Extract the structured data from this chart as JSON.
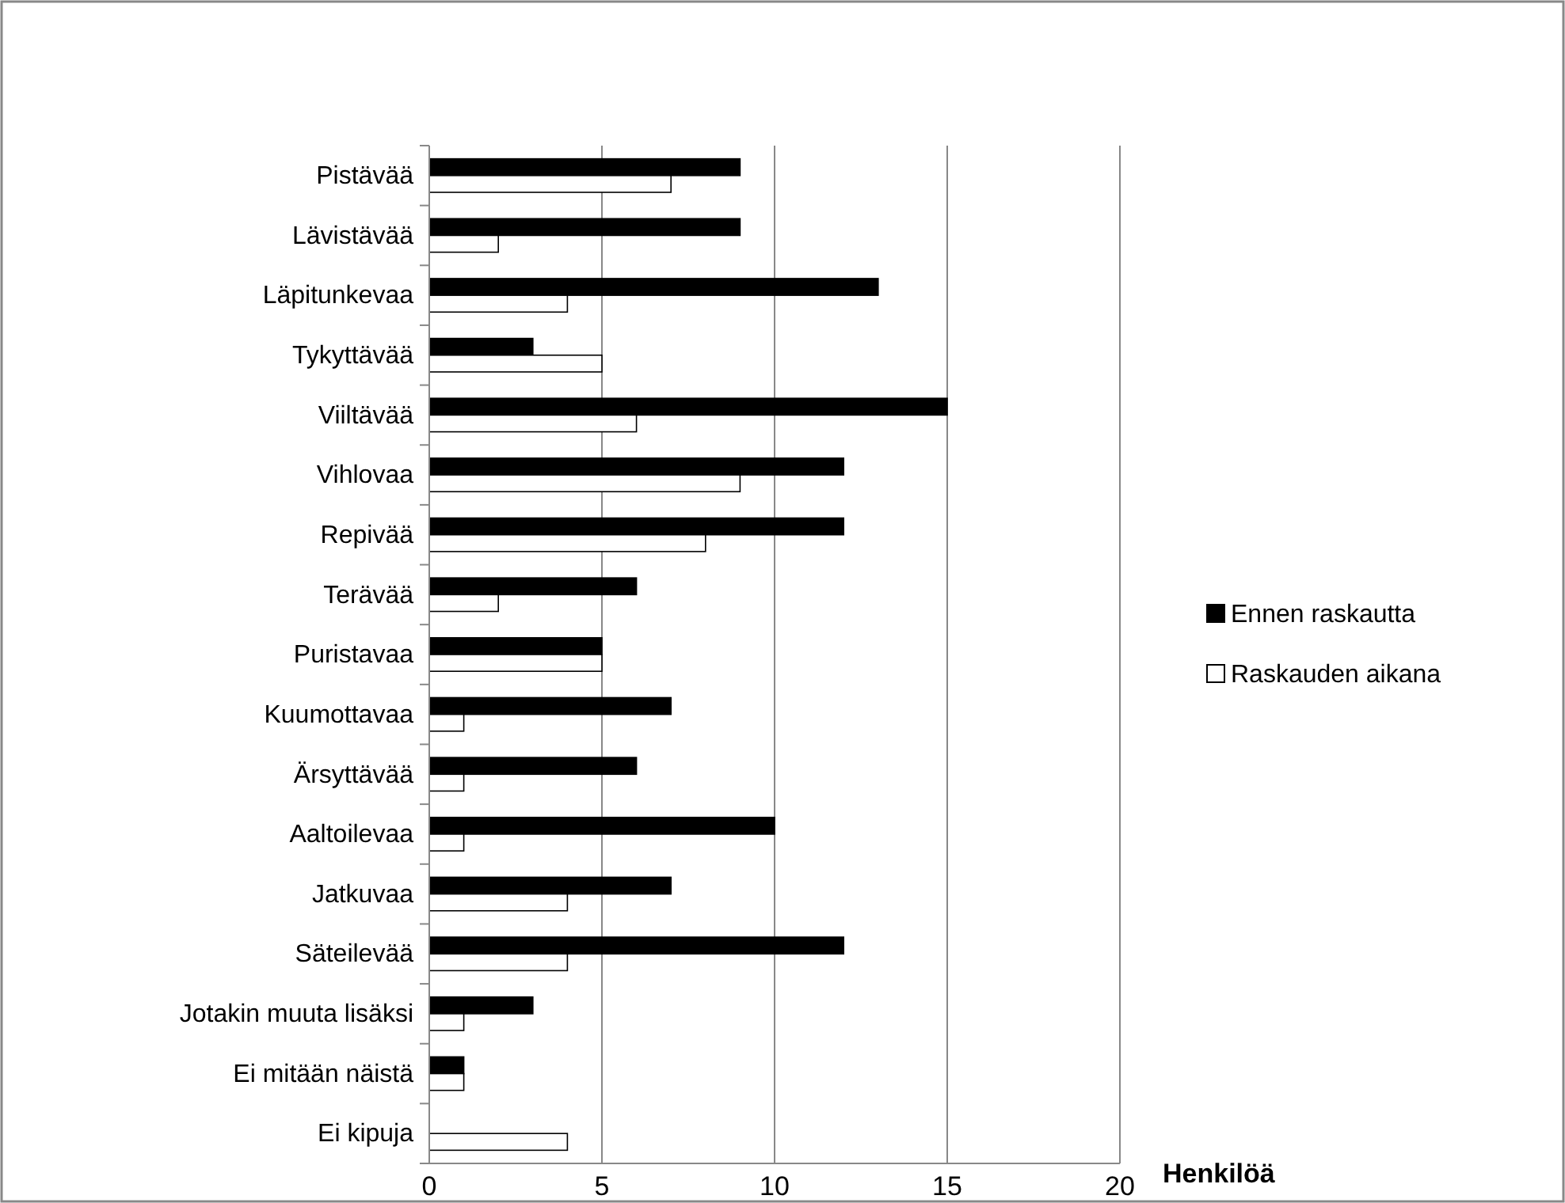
{
  "chart_data": {
    "type": "bar",
    "orientation": "horizontal",
    "xlabel": "Henkilöä",
    "categories": [
      "Pistävää",
      "Lävistävää",
      "Läpitunkevaa",
      "Tykyttävää",
      "Viiltävää",
      "Vihlovaa",
      "Repivää",
      "Terävää",
      "Puristavaa",
      "Kuumottavaa",
      "Ärsyttävää",
      "Aaltoilevaa",
      "Jatkuvaa",
      "Säteilevää",
      "Jotakin muuta lisäksi",
      "Ei mitään näistä",
      "Ei kipuja"
    ],
    "series": [
      {
        "name": "Ennen raskautta",
        "color": "#000000",
        "values": [
          9,
          9,
          13,
          3,
          15,
          12,
          12,
          6,
          5,
          7,
          6,
          10,
          7,
          12,
          3,
          1,
          0
        ]
      },
      {
        "name": "Raskauden aikana",
        "color": "#ffffff",
        "values": [
          7,
          2,
          4,
          5,
          6,
          9,
          8,
          2,
          5,
          1,
          1,
          1,
          4,
          4,
          1,
          1,
          4
        ]
      }
    ],
    "xlim": [
      0,
      20
    ],
    "xticks": [
      0,
      5,
      10,
      15,
      20
    ],
    "grid": "x",
    "legend": "right"
  }
}
